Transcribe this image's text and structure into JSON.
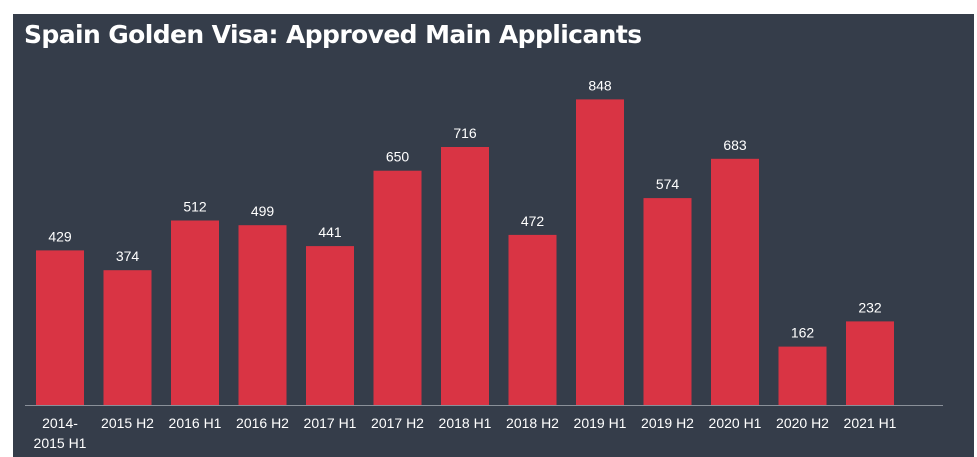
{
  "chart_data": {
    "type": "bar",
    "title": "Spain Golden Visa: Approved Main Applicants",
    "categories": [
      [
        "2014-",
        "2015 H1"
      ],
      [
        "2015 H2"
      ],
      [
        "2016 H1"
      ],
      [
        "2016 H2"
      ],
      [
        "2017 H1"
      ],
      [
        "2017 H2"
      ],
      [
        "2018 H1"
      ],
      [
        "2018 H2"
      ],
      [
        "2019 H1"
      ],
      [
        "2019 H2"
      ],
      [
        "2020 H1"
      ],
      [
        "2020 H2"
      ],
      [
        "2021 H1"
      ]
    ],
    "values": [
      429,
      374,
      512,
      499,
      441,
      650,
      716,
      472,
      848,
      574,
      683,
      162,
      232
    ],
    "ylim": [
      0,
      860
    ],
    "grid": false,
    "data_labels": true,
    "colors": {
      "background": "#353d4a",
      "bar": "#d93444",
      "text": "#ffffff",
      "axis": "#8a9099"
    }
  }
}
